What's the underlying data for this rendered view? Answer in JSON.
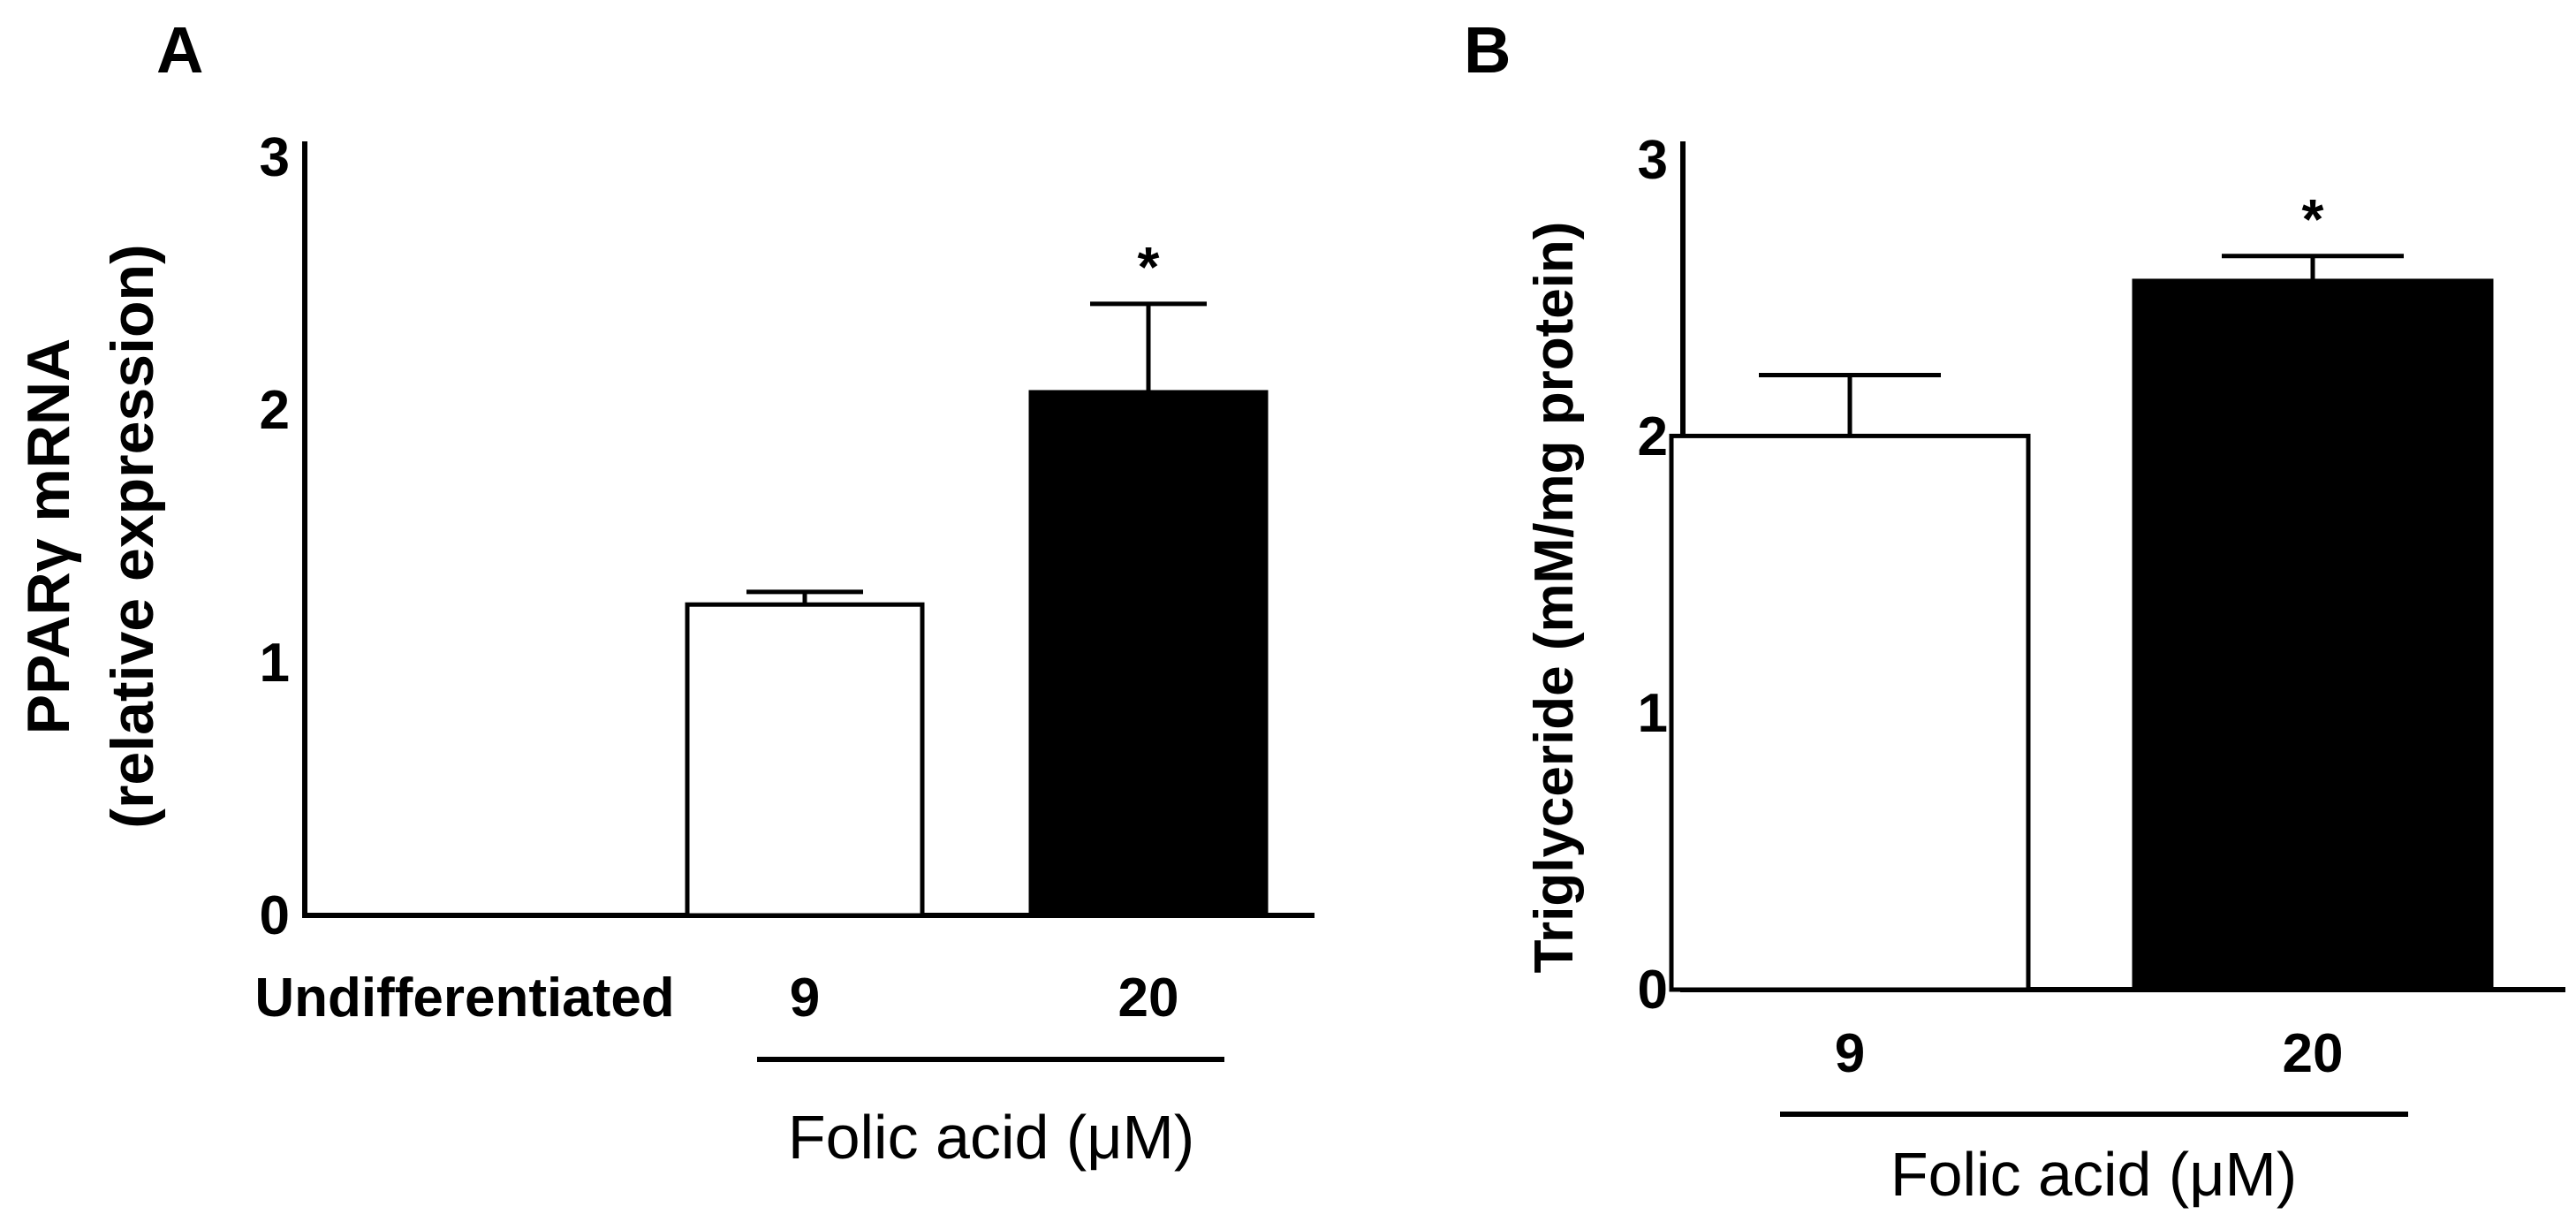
{
  "panels": [
    "A",
    "B"
  ],
  "chart_data": [
    {
      "panel": "A",
      "type": "bar",
      "categories": [
        "Undifferentiated",
        "9",
        "20"
      ],
      "values": [
        0,
        1.23,
        2.07
      ],
      "errors": [
        0,
        0.05,
        0.35
      ],
      "bar_colors": [
        "#ffffff",
        "#ffffff",
        "#000000"
      ],
      "significance": [
        "",
        "",
        "*"
      ],
      "ylabel_lines": [
        "PPARγ mRNA",
        "(relative expression)"
      ],
      "yticks": [
        "0",
        "1",
        "2",
        "3"
      ],
      "ylim": [
        0,
        3
      ],
      "group_label": "Folic acid (μM)",
      "grid": false,
      "legend": "none"
    },
    {
      "panel": "B",
      "type": "bar",
      "categories": [
        "9",
        "20"
      ],
      "values": [
        2.0,
        2.56
      ],
      "errors": [
        0.22,
        0.09
      ],
      "bar_colors": [
        "#ffffff",
        "#000000"
      ],
      "significance": [
        "",
        "*"
      ],
      "ylabel": "Triglyceride (mM/mg protein)",
      "yticks": [
        "0",
        "1",
        "2",
        "3"
      ],
      "ylim": [
        0,
        3
      ],
      "group_label": "Folic acid (μM)",
      "grid": false,
      "legend": "none"
    }
  ]
}
